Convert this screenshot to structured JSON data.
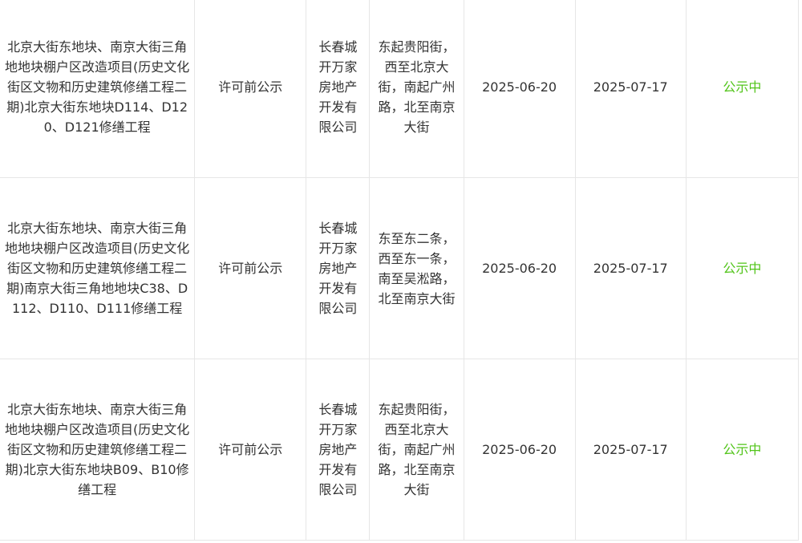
{
  "rows": [
    {
      "project": "北京大街东地块、南京大街三角地地块棚户区改造项目(历史文化街区文物和历史建筑修缮工程二期)北京大街东地块D114、D120、D121修缮工程",
      "type": "许可前公示",
      "developer": "长春城开万家房地产开发有限公司",
      "location": "东起贵阳街，西至北京大街，南起广州路，北至南京大街",
      "start_date": "2025-06-20",
      "end_date": "2025-07-17",
      "status": "公示中"
    },
    {
      "project": "北京大街东地块、南京大街三角地地块棚户区改造项目(历史文化街区文物和历史建筑修缮工程二期)南京大街三角地地块C38、D112、D110、D111修缮工程",
      "type": "许可前公示",
      "developer": "长春城开万家房地产开发有限公司",
      "location": "东至东二条，西至东一条，南至吴淞路，北至南京大街",
      "start_date": "2025-06-20",
      "end_date": "2025-07-17",
      "status": "公示中"
    },
    {
      "project": "北京大街东地块、南京大街三角地地块棚户区改造项目(历史文化街区文物和历史建筑修缮工程二期)北京大街东地块B09、B10修缮工程",
      "type": "许可前公示",
      "developer": "长春城开万家房地产开发有限公司",
      "location": "东起贵阳街，西至北京大街，南起广州路，北至南京大街",
      "start_date": "2025-06-20",
      "end_date": "2025-07-17",
      "status": "公示中"
    }
  ],
  "colors": {
    "status_active": "#52c41a",
    "border": "#e6e6e6",
    "text": "#333333"
  }
}
